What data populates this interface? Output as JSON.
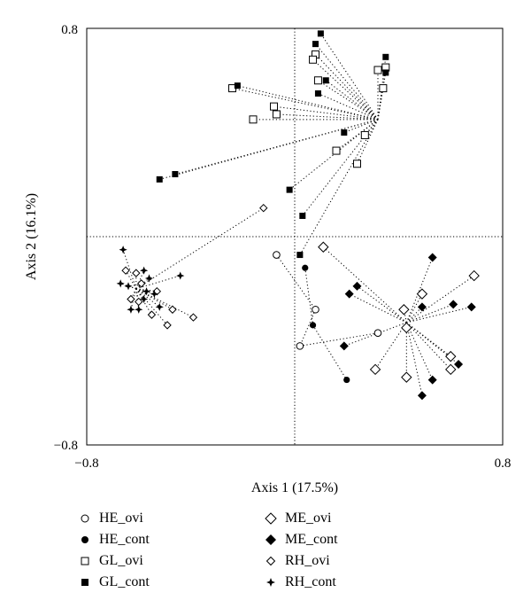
{
  "chart_data": {
    "type": "scatter",
    "xlabel": "Axis 1 (17.5%)",
    "ylabel": "Axis 2 (16.1%)",
    "xlim": [
      -0.8,
      0.8
    ],
    "ylim": [
      -0.8,
      0.8
    ],
    "x_ticks": [
      "−0.8",
      "0.8"
    ],
    "y_ticks": [
      "0.8",
      "−0.8"
    ],
    "reference_lines": {
      "x": 0,
      "y": 0
    },
    "grid": false,
    "legend_position": "bottom",
    "series": [
      {
        "name": "HE_ovi",
        "marker": "circle-open",
        "star_center": null,
        "points": [
          [
            -0.07,
            -0.07
          ],
          [
            0.08,
            -0.28
          ],
          [
            0.02,
            -0.42
          ],
          [
            0.32,
            -0.37
          ]
        ]
      },
      {
        "name": "HE_cont",
        "marker": "circle-filled",
        "star_center": null,
        "points": [
          [
            0.04,
            -0.12
          ],
          [
            0.07,
            -0.34
          ],
          [
            0.2,
            -0.55
          ]
        ]
      },
      {
        "name": "GL_ovi",
        "marker": "square-open",
        "star_center": [
          0.32,
          0.45
        ],
        "points": [
          [
            0.08,
            0.7
          ],
          [
            0.09,
            0.6
          ],
          [
            0.07,
            0.68
          ],
          [
            -0.24,
            0.57
          ],
          [
            -0.16,
            0.45
          ],
          [
            -0.07,
            0.47
          ],
          [
            -0.08,
            0.5
          ],
          [
            0.16,
            0.33
          ],
          [
            0.24,
            0.28
          ],
          [
            0.27,
            0.39
          ],
          [
            0.32,
            0.64
          ],
          [
            0.35,
            0.65
          ],
          [
            0.34,
            0.57
          ]
        ]
      },
      {
        "name": "GL_cont",
        "marker": "square-filled",
        "star_center": [
          0.32,
          0.45
        ],
        "points": [
          [
            0.1,
            0.78
          ],
          [
            0.08,
            0.74
          ],
          [
            0.12,
            0.6
          ],
          [
            0.09,
            0.55
          ],
          [
            -0.22,
            0.58
          ],
          [
            -0.46,
            0.24
          ],
          [
            -0.52,
            0.22
          ],
          [
            0.19,
            0.4
          ],
          [
            -0.02,
            0.18
          ],
          [
            0.03,
            0.08
          ],
          [
            0.02,
            -0.07
          ],
          [
            0.35,
            0.69
          ],
          [
            0.35,
            0.63
          ]
        ]
      },
      {
        "name": "ME_ovi",
        "marker": "diamond-open",
        "star_center": [
          0.43,
          -0.33
        ],
        "points": [
          [
            0.11,
            -0.04
          ],
          [
            0.49,
            -0.22
          ],
          [
            0.42,
            -0.28
          ],
          [
            0.43,
            -0.35
          ],
          [
            0.31,
            -0.51
          ],
          [
            0.43,
            -0.54
          ],
          [
            0.6,
            -0.46
          ],
          [
            0.6,
            -0.51
          ],
          [
            0.69,
            -0.15
          ]
        ]
      },
      {
        "name": "ME_cont",
        "marker": "diamond-filled",
        "star_center": [
          0.43,
          -0.33
        ],
        "points": [
          [
            0.53,
            -0.08
          ],
          [
            0.24,
            -0.19
          ],
          [
            0.21,
            -0.22
          ],
          [
            0.49,
            -0.27
          ],
          [
            0.61,
            -0.26
          ],
          [
            0.68,
            -0.27
          ],
          [
            0.19,
            -0.42
          ],
          [
            0.53,
            -0.55
          ],
          [
            0.49,
            -0.61
          ],
          [
            0.63,
            -0.49
          ]
        ]
      },
      {
        "name": "RH_ovi",
        "marker": "diamond-open-small",
        "star_center": [
          -0.61,
          -0.2
        ],
        "points": [
          [
            -0.12,
            0.11
          ],
          [
            -0.65,
            -0.13
          ],
          [
            -0.61,
            -0.14
          ],
          [
            -0.59,
            -0.18
          ],
          [
            -0.53,
            -0.21
          ],
          [
            -0.63,
            -0.24
          ],
          [
            -0.6,
            -0.25
          ],
          [
            -0.55,
            -0.3
          ],
          [
            -0.47,
            -0.28
          ],
          [
            -0.39,
            -0.31
          ],
          [
            -0.49,
            -0.34
          ]
        ]
      },
      {
        "name": "RH_cont",
        "marker": "star",
        "star_center": [
          -0.61,
          -0.2
        ],
        "points": [
          [
            -0.66,
            -0.05
          ],
          [
            -0.58,
            -0.13
          ],
          [
            -0.56,
            -0.16
          ],
          [
            -0.67,
            -0.18
          ],
          [
            -0.64,
            -0.19
          ],
          [
            -0.57,
            -0.21
          ],
          [
            -0.54,
            -0.22
          ],
          [
            -0.58,
            -0.24
          ],
          [
            -0.52,
            -0.27
          ],
          [
            -0.6,
            -0.28
          ],
          [
            -0.63,
            -0.28
          ],
          [
            -0.44,
            -0.15
          ]
        ]
      }
    ]
  }
}
